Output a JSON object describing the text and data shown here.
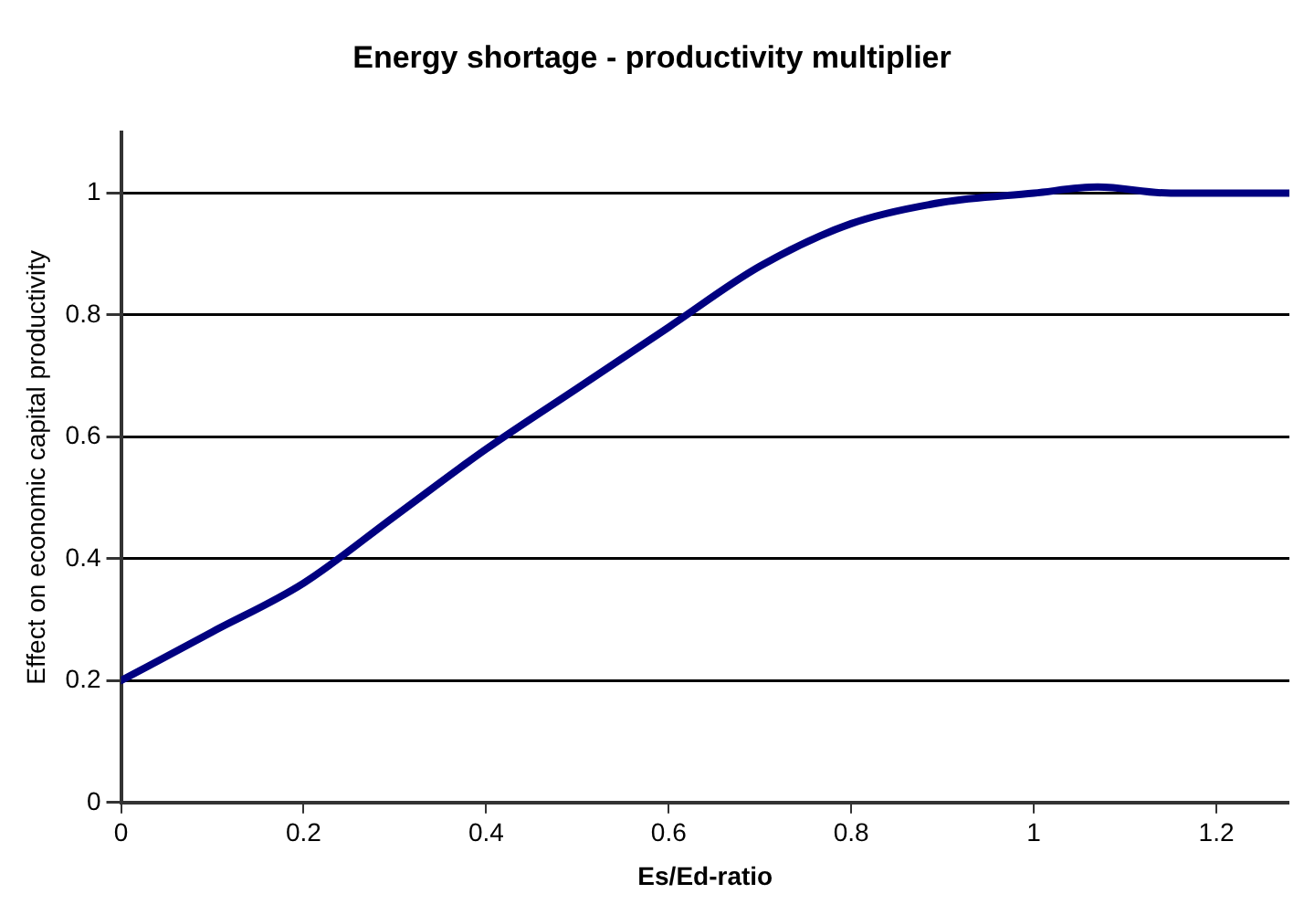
{
  "chart_data": {
    "type": "line",
    "title": "Energy shortage - productivity multiplier",
    "xlabel": "Es/Ed-ratio",
    "ylabel": "Effect on economic capital productivity",
    "series": [
      {
        "color": "#000080",
        "x": [
          0,
          0.1,
          0.2,
          0.3,
          0.4,
          0.5,
          0.6,
          0.7,
          0.8,
          0.9,
          1.0,
          1.07,
          1.15,
          1.28
        ],
        "values": [
          0.2,
          0.28,
          0.36,
          0.47,
          0.58,
          0.68,
          0.78,
          0.88,
          0.95,
          0.985,
          1.0,
          1.01,
          1.0,
          1.0
        ]
      }
    ],
    "xlim": [
      0,
      1.28
    ],
    "xticks": [
      0,
      0.2,
      0.4,
      0.6,
      0.8,
      1,
      1.2
    ],
    "ylim": [
      0,
      1.1
    ],
    "yticks": [
      0,
      0.2,
      0.4,
      0.6,
      0.8,
      1
    ],
    "grid": "y",
    "legend": false,
    "marker": "none",
    "line_style": "solid"
  }
}
